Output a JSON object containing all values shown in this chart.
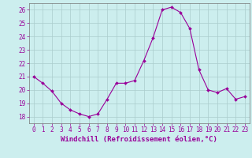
{
  "x": [
    0,
    1,
    2,
    3,
    4,
    5,
    6,
    7,
    8,
    9,
    10,
    11,
    12,
    13,
    14,
    15,
    16,
    17,
    18,
    19,
    20,
    21,
    22,
    23
  ],
  "y": [
    21.0,
    20.5,
    19.9,
    19.0,
    18.5,
    18.2,
    18.0,
    18.2,
    19.3,
    20.5,
    20.5,
    20.7,
    22.2,
    23.9,
    26.0,
    26.2,
    25.8,
    24.6,
    21.5,
    20.0,
    19.8,
    20.1,
    19.3,
    19.5
  ],
  "line_color": "#990099",
  "marker": "D",
  "marker_size": 2.0,
  "background_color": "#cceeee",
  "grid_color": "#aacccc",
  "xlabel": "Windchill (Refroidissement éolien,°C)",
  "ylim": [
    17.5,
    26.5
  ],
  "xlim": [
    -0.5,
    23.5
  ],
  "yticks": [
    18,
    19,
    20,
    21,
    22,
    23,
    24,
    25,
    26
  ],
  "xticks": [
    0,
    1,
    2,
    3,
    4,
    5,
    6,
    7,
    8,
    9,
    10,
    11,
    12,
    13,
    14,
    15,
    16,
    17,
    18,
    19,
    20,
    21,
    22,
    23
  ],
  "tick_fontsize": 5.5,
  "xlabel_fontsize": 6.5
}
